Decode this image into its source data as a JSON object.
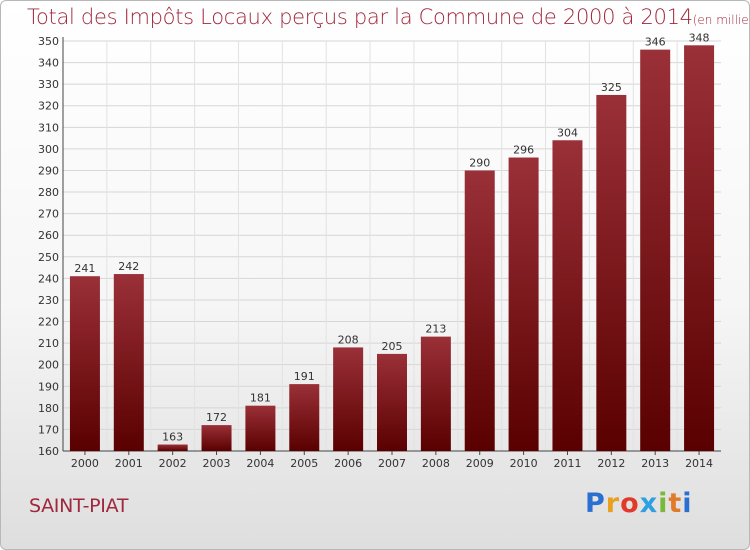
{
  "chart_data": {
    "type": "bar",
    "title": "Total des Impôts Locaux perçus par la Commune de 2000 à 2014",
    "subtitle": "(en milliers d'€)",
    "categories": [
      "2000",
      "2001",
      "2002",
      "2003",
      "2004",
      "2005",
      "2006",
      "2007",
      "2008",
      "2009",
      "2010",
      "2011",
      "2012",
      "2013",
      "2014"
    ],
    "values": [
      241,
      242,
      163,
      172,
      181,
      191,
      208,
      205,
      213,
      290,
      296,
      304,
      325,
      346,
      348
    ],
    "ylim": [
      160,
      350
    ],
    "ytick_step": 10,
    "grid": true,
    "xlabel": "",
    "ylabel": "",
    "bar_color_top": "#9a3038",
    "bar_color_bottom": "#5a0000"
  },
  "commune": "SAINT-PIAT",
  "logo": {
    "letters": [
      "P",
      "r",
      "o",
      "x",
      "i",
      "t",
      "i"
    ],
    "colors": [
      "#2b6fd0",
      "#e8a020",
      "#e23a2a",
      "#2ca0e0",
      "#7ab83a",
      "#e27a2a",
      "#2b6fd0"
    ]
  }
}
